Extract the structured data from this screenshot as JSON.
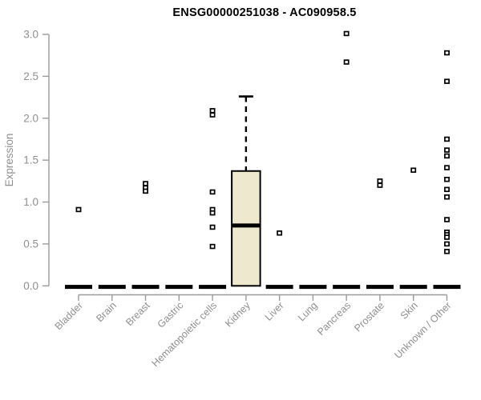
{
  "title": "ENSG00000251038 - AC090958.5",
  "colors": {
    "title_text": "#000000",
    "axis_line": "#9b9b9b",
    "axis_text": "#8f8f8f",
    "box_fill": "#EDE8CE",
    "box_border": "#000000",
    "zero_bar": "#000000",
    "outlier_fill": "#ffffff",
    "outlier_border": "#000000",
    "background": "#ffffff"
  },
  "chart_data": {
    "type": "boxplot",
    "title": "ENSG00000251038 - AC090958.5",
    "xlabel": "",
    "ylabel": "Expression",
    "ylim": [
      0.0,
      3.0
    ],
    "yticks": [
      0.0,
      0.5,
      1.0,
      1.5,
      2.0,
      2.5,
      3.0
    ],
    "grid": false,
    "legend": "none",
    "categories": [
      "Bladder",
      "Brain",
      "Breast",
      "Gastric",
      "Hematopoietic cells",
      "Kidney",
      "Liver",
      "Lung",
      "Pancreas",
      "Prostate",
      "Skin",
      "Unknown / Other"
    ],
    "boxes": [
      {
        "category": "Bladder",
        "collapsed": true,
        "q1": 0,
        "median": 0,
        "q3": 0,
        "whisker_low": 0,
        "whisker_high": 0,
        "outliers": [
          0.91
        ]
      },
      {
        "category": "Brain",
        "collapsed": true,
        "q1": 0,
        "median": 0,
        "q3": 0,
        "whisker_low": 0,
        "whisker_high": 0,
        "outliers": []
      },
      {
        "category": "Breast",
        "collapsed": true,
        "q1": 0,
        "median": 0,
        "q3": 0,
        "whisker_low": 0,
        "whisker_high": 0,
        "outliers": [
          1.22,
          1.17,
          1.13
        ]
      },
      {
        "category": "Gastric",
        "collapsed": true,
        "q1": 0,
        "median": 0,
        "q3": 0,
        "whisker_low": 0,
        "whisker_high": 0,
        "outliers": []
      },
      {
        "category": "Hematopoietic cells",
        "collapsed": true,
        "q1": 0,
        "median": 0,
        "q3": 0,
        "whisker_low": 0,
        "whisker_high": 0,
        "outliers": [
          2.09,
          2.04,
          1.12,
          0.91,
          0.87,
          0.7,
          0.47
        ]
      },
      {
        "category": "Kidney",
        "collapsed": false,
        "q1": 0.0,
        "median": 0.72,
        "q3": 1.37,
        "whisker_low": 0.0,
        "whisker_high": 2.26,
        "outliers": []
      },
      {
        "category": "Liver",
        "collapsed": true,
        "q1": 0,
        "median": 0,
        "q3": 0,
        "whisker_low": 0,
        "whisker_high": 0,
        "outliers": [
          0.63
        ]
      },
      {
        "category": "Lung",
        "collapsed": true,
        "q1": 0,
        "median": 0,
        "q3": 0,
        "whisker_low": 0,
        "whisker_high": 0,
        "outliers": []
      },
      {
        "category": "Pancreas",
        "collapsed": true,
        "q1": 0,
        "median": 0,
        "q3": 0,
        "whisker_low": 0,
        "whisker_high": 0,
        "outliers": [
          3.01,
          2.67
        ]
      },
      {
        "category": "Prostate",
        "collapsed": true,
        "q1": 0,
        "median": 0,
        "q3": 0,
        "whisker_low": 0,
        "whisker_high": 0,
        "outliers": [
          1.25,
          1.2
        ]
      },
      {
        "category": "Skin",
        "collapsed": true,
        "q1": 0,
        "median": 0,
        "q3": 0,
        "whisker_low": 0,
        "whisker_high": 0,
        "outliers": [
          1.38
        ]
      },
      {
        "category": "Unknown / Other",
        "collapsed": true,
        "q1": 0,
        "median": 0,
        "q3": 0,
        "whisker_low": 0,
        "whisker_high": 0,
        "outliers": [
          2.78,
          2.44,
          1.75,
          1.62,
          1.55,
          1.41,
          1.27,
          1.15,
          1.06,
          0.79,
          0.64,
          0.61,
          0.58,
          0.5,
          0.41
        ]
      }
    ]
  }
}
